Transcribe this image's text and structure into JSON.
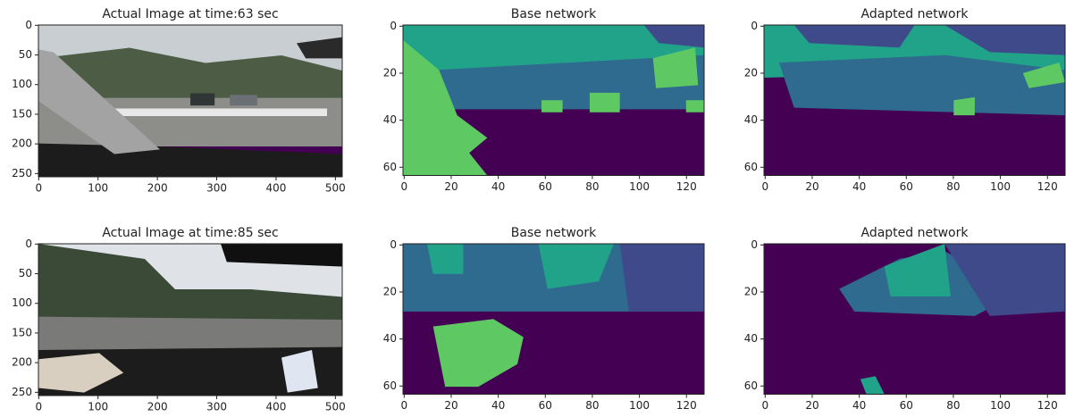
{
  "chart_data": [
    {
      "type": "image",
      "title": "Actual Image at time:63 sec",
      "xlim": [
        -0.5,
        511.5
      ],
      "ylim": [
        255.5,
        -0.5
      ],
      "xticks": [
        0,
        100,
        200,
        300,
        400,
        500
      ],
      "yticks": [
        0,
        50,
        100,
        150,
        200,
        250
      ]
    },
    {
      "type": "image",
      "title": "Base network",
      "xlim": [
        -0.5,
        127.5
      ],
      "ylim": [
        63.5,
        -0.5
      ],
      "xticks": [
        0,
        20,
        40,
        60,
        80,
        100,
        120
      ],
      "yticks": [
        0,
        20,
        40,
        60
      ]
    },
    {
      "type": "image",
      "title": "Adapted network",
      "xlim": [
        -0.5,
        127.5
      ],
      "ylim": [
        63.5,
        -0.5
      ],
      "xticks": [
        0,
        20,
        40,
        60,
        80,
        100,
        120
      ],
      "yticks": [
        0,
        20,
        40,
        60
      ]
    },
    {
      "type": "image",
      "title": "Actual Image at time:85 sec",
      "xlim": [
        -0.5,
        511.5
      ],
      "ylim": [
        255.5,
        -0.5
      ],
      "xticks": [
        0,
        100,
        200,
        300,
        400,
        500
      ],
      "yticks": [
        0,
        50,
        100,
        150,
        200,
        250
      ]
    },
    {
      "type": "image",
      "title": "Base network",
      "xlim": [
        -0.5,
        127.5
      ],
      "ylim": [
        63.5,
        -0.5
      ],
      "xticks": [
        0,
        20,
        40,
        60,
        80,
        100,
        120
      ],
      "yticks": [
        0,
        20,
        40,
        60
      ]
    },
    {
      "type": "image",
      "title": "Adapted network",
      "xlim": [
        -0.5,
        127.5
      ],
      "ylim": [
        63.5,
        -0.5
      ],
      "xticks": [
        0,
        20,
        40,
        60,
        80,
        100,
        120
      ],
      "yticks": [
        0,
        20,
        40,
        60
      ]
    }
  ]
}
